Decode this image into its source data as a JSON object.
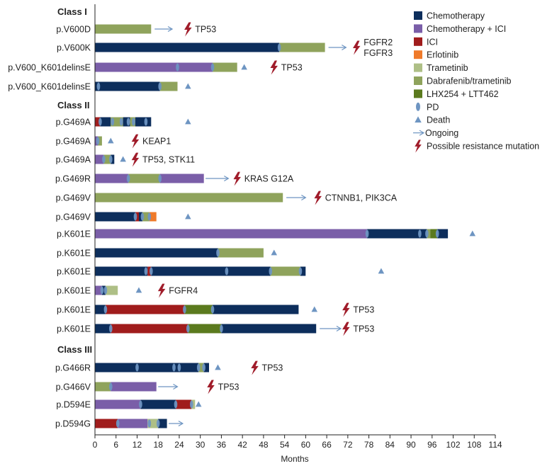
{
  "chart_data": {
    "type": "swimmer",
    "xlabel": "Months",
    "xlim": [
      0,
      114
    ],
    "xticks": [
      0,
      6,
      12,
      18,
      24,
      30,
      36,
      42,
      48,
      54,
      60,
      66,
      72,
      78,
      84,
      90,
      96,
      102,
      108,
      114
    ],
    "colors": {
      "chemo": "#0d2e5c",
      "chemo_ici": "#7a5ea8",
      "ici": "#a01c1c",
      "erlotinib": "#ef7a2a",
      "trametinib": "#aebf86",
      "dabtram": "#8fa35c",
      "lhx": "#5b7a1e",
      "marker": "#6e95c2",
      "bolt": "#a01c2a",
      "text": "#222222"
    },
    "legend": [
      {
        "key": "chemo",
        "label": "Chemotherapy",
        "kind": "box"
      },
      {
        "key": "chemo_ici",
        "label": "Chemotherapy + ICI",
        "kind": "box"
      },
      {
        "key": "ici",
        "label": "ICI",
        "kind": "box"
      },
      {
        "key": "erlotinib",
        "label": "Erlotinib",
        "kind": "box"
      },
      {
        "key": "trametinib",
        "label": "Trametinib",
        "kind": "box"
      },
      {
        "key": "dabtram",
        "label": "Dabrafenib/trametinib",
        "kind": "box"
      },
      {
        "key": "lhx",
        "label": "LHX254 + LTT462",
        "kind": "box"
      },
      {
        "key": "pd",
        "label": "PD",
        "kind": "ellipse"
      },
      {
        "key": "death",
        "label": "Death",
        "kind": "triangle"
      },
      {
        "key": "ongoing",
        "label": "Ongoing",
        "kind": "arrow"
      },
      {
        "key": "resistance",
        "label": "Possible resistance mutation",
        "kind": "bolt"
      }
    ],
    "classes": [
      {
        "label": "Class I",
        "before_row": 0
      },
      {
        "label": "Class II",
        "before_row": 4
      },
      {
        "label": "Class III",
        "before_row": 16
      }
    ],
    "patients": [
      {
        "label": "p.V600D",
        "segments": [
          {
            "t": "dabtram",
            "s": 0,
            "e": 16
          }
        ],
        "pd": [],
        "death": null,
        "arrow": [
          17,
          22
        ],
        "mutation": {
          "x": 26.5,
          "text": "TP53"
        }
      },
      {
        "label": "p.V600K",
        "segments": [
          {
            "t": "chemo",
            "s": 0,
            "e": 52.5
          },
          {
            "t": "dabtram",
            "s": 52.5,
            "e": 65.5
          }
        ],
        "pd": [
          52.5
        ],
        "death": null,
        "arrow": [
          66.5,
          71.5
        ],
        "mutation": {
          "x": 74.5,
          "text": "FGFR2\nFGFR3"
        }
      },
      {
        "label": "p.V600_K601delinsE",
        "segments": [
          {
            "t": "chemo_ici",
            "s": 0,
            "e": 33.5
          },
          {
            "t": "dabtram",
            "s": 33.5,
            "e": 40.5
          }
        ],
        "pd": [
          23.5,
          33.5
        ],
        "death": 42.5,
        "arrow": null,
        "mutation": {
          "x": 51,
          "text": "TP53"
        }
      },
      {
        "label": "p.V600_K601delinsE",
        "segments": [
          {
            "t": "chemo",
            "s": 0,
            "e": 18.5
          },
          {
            "t": "dabtram",
            "s": 18.5,
            "e": 23.5
          }
        ],
        "pd": [
          1,
          18.5
        ],
        "death": 26.5,
        "arrow": null,
        "mutation": null
      },
      {
        "label": "p.G469A",
        "segments": [
          {
            "t": "ici",
            "s": 0,
            "e": 1.5
          },
          {
            "t": "chemo",
            "s": 1.5,
            "e": 4.5
          },
          {
            "t": "dabtram",
            "s": 4.5,
            "e": 8
          },
          {
            "t": "chemo",
            "s": 8,
            "e": 10
          },
          {
            "t": "dabtram",
            "s": 10,
            "e": 11.5
          },
          {
            "t": "chemo",
            "s": 11.5,
            "e": 16
          }
        ],
        "pd": [
          1.5,
          5,
          7.5,
          9.5,
          11,
          14.5
        ],
        "death": 26.5,
        "arrow": null,
        "mutation": null
      },
      {
        "label": "p.G469A",
        "segments": [
          {
            "t": "chemo_ici",
            "s": 0,
            "e": 0.8
          },
          {
            "t": "dabtram",
            "s": 0.8,
            "e": 2
          }
        ],
        "pd": [
          0.8
        ],
        "death": 4.5,
        "arrow": null,
        "mutation": {
          "x": 11.5,
          "text": "KEAP1"
        }
      },
      {
        "label": "p.G469A",
        "segments": [
          {
            "t": "chemo_ici",
            "s": 0,
            "e": 2.5
          },
          {
            "t": "dabtram",
            "s": 2.5,
            "e": 4.5
          },
          {
            "t": "chemo",
            "s": 4.5,
            "e": 5.5
          }
        ],
        "pd": [
          2.5,
          4.5
        ],
        "death": 8,
        "arrow": null,
        "mutation": {
          "x": 11.5,
          "text": "TP53, STK11"
        }
      },
      {
        "label": "p.G469R",
        "segments": [
          {
            "t": "chemo_ici",
            "s": 0,
            "e": 9.5
          },
          {
            "t": "dabtram",
            "s": 9.5,
            "e": 18.5
          },
          {
            "t": "chemo_ici",
            "s": 18.5,
            "e": 31
          }
        ],
        "pd": [
          9.5,
          18.5
        ],
        "death": null,
        "arrow": [
          31.5,
          38
        ],
        "mutation": {
          "x": 40.5,
          "text": "KRAS G12A"
        }
      },
      {
        "label": "p.G469V",
        "segments": [
          {
            "t": "dabtram",
            "s": 0,
            "e": 53.5
          }
        ],
        "pd": [],
        "death": null,
        "arrow": [
          54.5,
          60
        ],
        "mutation": {
          "x": 63.5,
          "text": "CTNNB1, PIK3CA"
        }
      },
      {
        "label": "p.G469V",
        "segments": [
          {
            "t": "chemo",
            "s": 0,
            "e": 11.5
          },
          {
            "t": "ici",
            "s": 11.5,
            "e": 12.5
          },
          {
            "t": "chemo",
            "s": 12.5,
            "e": 13.5
          },
          {
            "t": "dabtram",
            "s": 13.5,
            "e": 15.5
          },
          {
            "t": "erlotinib",
            "s": 15.5,
            "e": 17.5
          }
        ],
        "pd": [
          11.5,
          13.5,
          15.5
        ],
        "death": 26.5,
        "arrow": null,
        "mutation": null
      },
      {
        "label": "p.K601E",
        "segments": [
          {
            "t": "chemo_ici",
            "s": 0,
            "e": 77.5
          },
          {
            "t": "chemo",
            "s": 77.5,
            "e": 94.5
          },
          {
            "t": "dabtram",
            "s": 94.5,
            "e": 95.5
          },
          {
            "t": "lhx",
            "s": 95.5,
            "e": 97.5
          },
          {
            "t": "chemo",
            "s": 97.5,
            "e": 100.5
          }
        ],
        "pd": [
          77.5,
          92.5,
          94.5,
          97.5
        ],
        "death": 107.5,
        "arrow": null,
        "mutation": null
      },
      {
        "label": "p.K601E",
        "segments": [
          {
            "t": "chemo",
            "s": 0,
            "e": 35
          },
          {
            "t": "dabtram",
            "s": 35,
            "e": 48
          }
        ],
        "pd": [
          35
        ],
        "death": 51,
        "arrow": null,
        "mutation": null
      },
      {
        "label": "p.K601E",
        "segments": [
          {
            "t": "chemo",
            "s": 0,
            "e": 15
          },
          {
            "t": "ici",
            "s": 15,
            "e": 16
          },
          {
            "t": "chemo",
            "s": 16,
            "e": 50
          },
          {
            "t": "dabtram",
            "s": 50,
            "e": 58.5
          },
          {
            "t": "chemo",
            "s": 58.5,
            "e": 60
          }
        ],
        "pd": [
          14.5,
          16,
          37.5,
          50,
          58.5
        ],
        "death": 81.5,
        "arrow": null,
        "mutation": null
      },
      {
        "label": "p.K601E",
        "segments": [
          {
            "t": "chemo_ici",
            "s": 0,
            "e": 2
          },
          {
            "t": "chemo",
            "s": 2,
            "e": 3
          },
          {
            "t": "trametinib",
            "s": 3,
            "e": 6.5
          }
        ],
        "pd": [
          2,
          3
        ],
        "death": 12.5,
        "arrow": null,
        "mutation": {
          "x": 19,
          "text": "FGFR4"
        }
      },
      {
        "label": "p.K601E",
        "segments": [
          {
            "t": "chemo",
            "s": 0,
            "e": 3
          },
          {
            "t": "ici",
            "s": 3,
            "e": 25.5
          },
          {
            "t": "lhx",
            "s": 25.5,
            "e": 33.5
          },
          {
            "t": "chemo",
            "s": 33.5,
            "e": 58
          }
        ],
        "pd": [
          3,
          25.5,
          33.5
        ],
        "death": 62.5,
        "arrow": null,
        "mutation": {
          "x": 71.5,
          "text": "TP53"
        }
      },
      {
        "label": "p.K601E",
        "segments": [
          {
            "t": "chemo",
            "s": 0,
            "e": 4.5
          },
          {
            "t": "ici",
            "s": 4.5,
            "e": 26.5
          },
          {
            "t": "lhx",
            "s": 26.5,
            "e": 36
          },
          {
            "t": "chemo",
            "s": 36,
            "e": 63
          }
        ],
        "pd": [
          4.5,
          26.5,
          36
        ],
        "death": null,
        "arrow": [
          64,
          70
        ],
        "mutation": {
          "x": 71.5,
          "text": "TP53"
        }
      },
      {
        "label": "p.G466R",
        "segments": [
          {
            "t": "chemo",
            "s": 0,
            "e": 29.5
          },
          {
            "t": "dabtram",
            "s": 29.5,
            "e": 31
          },
          {
            "t": "chemo",
            "s": 31,
            "e": 32.5
          }
        ],
        "pd": [
          12,
          22.5,
          24,
          29.5,
          31
        ],
        "death": 35,
        "arrow": null,
        "mutation": {
          "x": 45.5,
          "text": "TP53"
        }
      },
      {
        "label": "p.G466V",
        "segments": [
          {
            "t": "dabtram",
            "s": 0,
            "e": 4.5
          },
          {
            "t": "chemo_ici",
            "s": 4.5,
            "e": 17.5
          }
        ],
        "pd": [
          4.5
        ],
        "death": null,
        "arrow": [
          18,
          23.5
        ],
        "mutation": {
          "x": 33,
          "text": "TP53"
        }
      },
      {
        "label": "p.D594E",
        "segments": [
          {
            "t": "chemo_ici",
            "s": 0,
            "e": 13
          },
          {
            "t": "chemo",
            "s": 13,
            "e": 23
          },
          {
            "t": "ici",
            "s": 23,
            "e": 27.5
          },
          {
            "t": "trametinib",
            "s": 27.5,
            "e": 28.5
          }
        ],
        "pd": [
          13,
          23,
          27.5
        ],
        "death": 29.5,
        "arrow": null,
        "mutation": null
      },
      {
        "label": "p.D594G",
        "segments": [
          {
            "t": "ici",
            "s": 0,
            "e": 6.5
          },
          {
            "t": "chemo_ici",
            "s": 6.5,
            "e": 15
          },
          {
            "t": "trametinib",
            "s": 15,
            "e": 18
          },
          {
            "t": "chemo",
            "s": 18,
            "e": 20.5
          }
        ],
        "pd": [
          6.5,
          15.5,
          18
        ],
        "death": null,
        "arrow": [
          21,
          25
        ],
        "mutation": null
      }
    ]
  }
}
